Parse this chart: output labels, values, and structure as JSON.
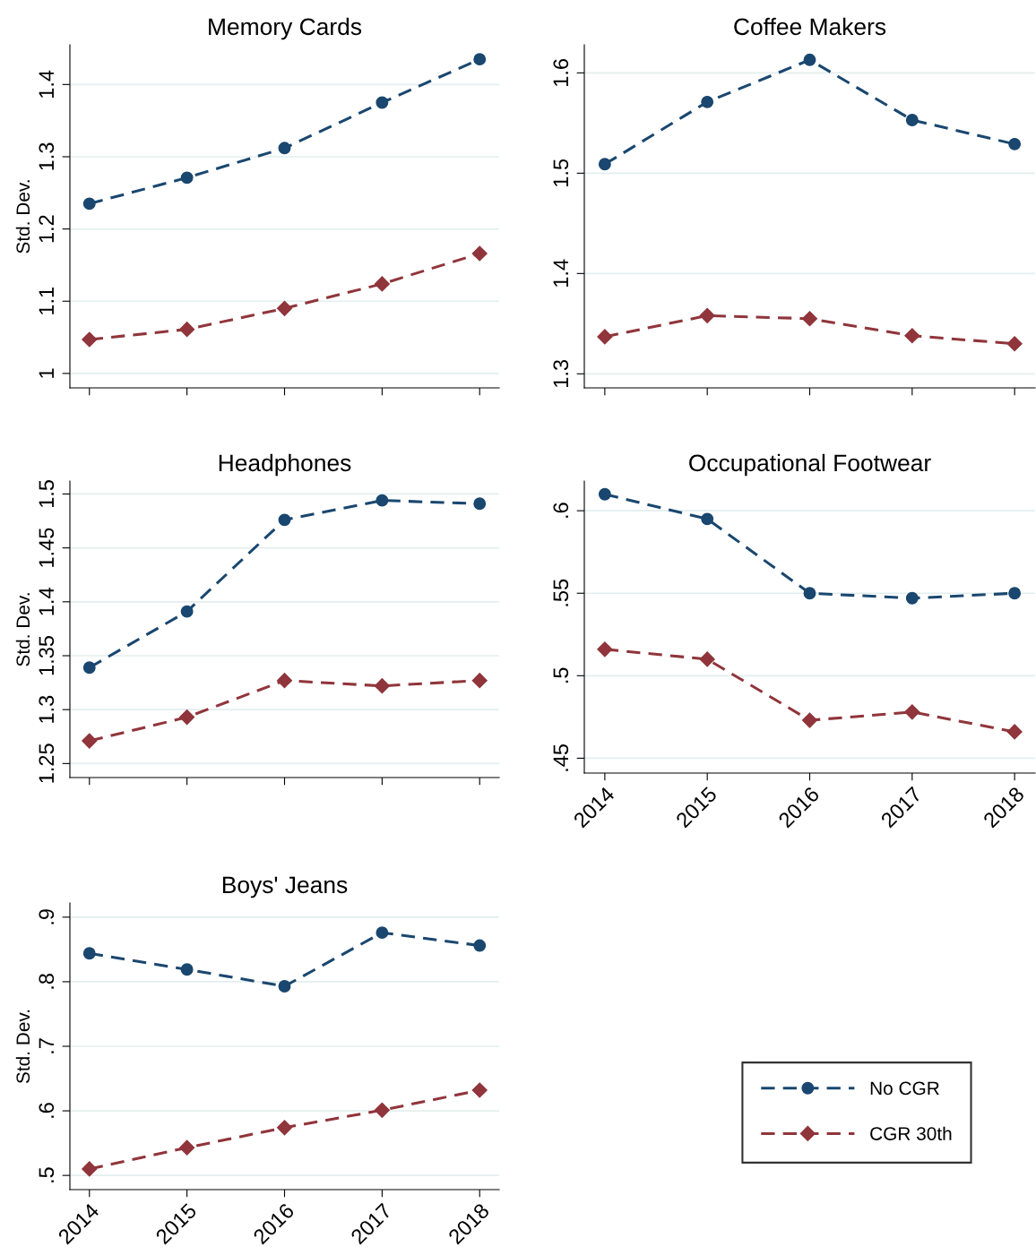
{
  "chart_data": [
    {
      "type": "line",
      "title": "Memory Cards",
      "ylabel": "Std. Dev.",
      "categories": [
        "2014",
        "2015",
        "2016",
        "2017",
        "2018"
      ],
      "ylim": [
        0.98,
        1.455
      ],
      "yticks": [
        {
          "value": 1,
          "label": "1"
        },
        1.1,
        1.2,
        1.3,
        1.4
      ],
      "grid": "y",
      "line_style": "dashed",
      "tick_labels": "y",
      "series": [
        {
          "color": "#1a476f",
          "marker": "circle",
          "values": [
            1.235,
            1.271,
            1.312,
            1.375,
            1.435
          ]
        },
        {
          "color": "#90353b",
          "marker": "diamond",
          "values": [
            1.047,
            1.061,
            1.09,
            1.124,
            1.166
          ]
        }
      ]
    },
    {
      "type": "line",
      "title": "Coffee Makers",
      "categories": [
        "2014",
        "2015",
        "2016",
        "2017",
        "2018"
      ],
      "ylim": [
        1.286,
        1.628
      ],
      "yticks": [
        1.3,
        1.4,
        1.5,
        1.6
      ],
      "grid": "y",
      "line_style": "dashed",
      "tick_labels": "y",
      "series": [
        {
          "color": "#1a476f",
          "marker": "circle",
          "values": [
            1.509,
            1.571,
            1.613,
            1.553,
            1.529
          ]
        },
        {
          "color": "#90353b",
          "marker": "diamond",
          "values": [
            1.337,
            1.358,
            1.355,
            1.338,
            1.33
          ]
        }
      ]
    },
    {
      "type": "line",
      "title": "Headphones",
      "ylabel": "Std. Dev.",
      "categories": [
        "2014",
        "2015",
        "2016",
        "2017",
        "2018"
      ],
      "ylim": [
        1.237,
        1.512
      ],
      "yticks": [
        1.25,
        1.3,
        1.35,
        1.4,
        1.45,
        1.5
      ],
      "grid": "y",
      "line_style": "dashed",
      "tick_labels": "y",
      "series": [
        {
          "color": "#1a476f",
          "marker": "circle",
          "values": [
            1.339,
            1.391,
            1.476,
            1.494,
            1.491
          ]
        },
        {
          "color": "#90353b",
          "marker": "diamond",
          "values": [
            1.271,
            1.293,
            1.327,
            1.322,
            1.327
          ]
        }
      ]
    },
    {
      "type": "line",
      "title": "Occupational Footwear",
      "categories": [
        "2014",
        "2015",
        "2016",
        "2017",
        "2018"
      ],
      "ylim": [
        0.441,
        0.618
      ],
      "yticks": [
        {
          "value": 0.45,
          "label": ".45"
        },
        {
          "value": 0.5,
          "label": ".5"
        },
        {
          "value": 0.55,
          "label": ".55"
        },
        {
          "value": 0.6,
          "label": ".6"
        }
      ],
      "grid": "y",
      "line_style": "dashed",
      "series": [
        {
          "color": "#1a476f",
          "marker": "circle",
          "values": [
            0.61,
            0.595,
            0.55,
            0.547,
            0.55
          ]
        },
        {
          "color": "#90353b",
          "marker": "diamond",
          "values": [
            0.516,
            0.51,
            0.473,
            0.478,
            0.466
          ]
        }
      ]
    },
    {
      "type": "line",
      "title": "Boys' Jeans",
      "ylabel": "Std. Dev.",
      "categories": [
        "2014",
        "2015",
        "2016",
        "2017",
        "2018"
      ],
      "ylim": [
        0.478,
        0.922
      ],
      "yticks": [
        {
          "value": 0.5,
          "label": ".5"
        },
        {
          "value": 0.6,
          "label": ".6"
        },
        {
          "value": 0.7,
          "label": ".7"
        },
        {
          "value": 0.8,
          "label": ".8"
        },
        {
          "value": 0.9,
          "label": ".9"
        }
      ],
      "grid": "y",
      "line_style": "dashed",
      "legend": "right",
      "series": [
        {
          "name": "No CGR",
          "color": "#1a476f",
          "marker": "circle",
          "values": [
            0.844,
            0.819,
            0.793,
            0.876,
            0.856
          ]
        },
        {
          "name": "CGR 30th",
          "color": "#90353b",
          "marker": "diamond",
          "values": [
            0.51,
            0.543,
            0.574,
            0.601,
            0.632
          ]
        }
      ]
    }
  ]
}
